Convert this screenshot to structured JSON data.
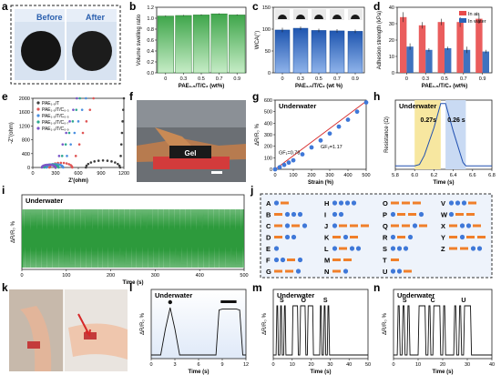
{
  "panel_letters": [
    "a",
    "b",
    "c",
    "d",
    "e",
    "f",
    "g",
    "h",
    "i",
    "j",
    "k",
    "l",
    "m",
    "n"
  ],
  "photo_a": {
    "before_label": "Before",
    "after_label": "After"
  },
  "photo_f": {
    "gel_label": "Gel"
  },
  "colors": {
    "green_bar": "#4caf50",
    "blue_bar": "#2a63b8",
    "red_bar": "#e84b4b",
    "blue_light": "#5d8fdc",
    "orange_dash": "#f07f2a",
    "dot_blue": "#3f78d8",
    "green_signal": "#2d9a3c",
    "panel_bg": "#eef3fb",
    "yellow_band": "#f7e7a0",
    "blue_band": "#c9daf3"
  },
  "chart_data": [
    {
      "panel": "b",
      "type": "bar",
      "categories": [
        "0",
        "0.3",
        "0.5",
        "0.7",
        "0.9"
      ],
      "values": [
        1.04,
        1.05,
        1.06,
        1.08,
        1.06
      ],
      "errors": [
        0.01,
        0.01,
        0.01,
        0.01,
        0.01
      ],
      "xlabel": "PAE₁.₅/T/C₂ (wt%)",
      "ylabel": "Volume swelling ratio",
      "ylim": [
        0.0,
        1.2
      ],
      "yticks": [
        "0.0",
        "0.2",
        "0.4",
        "0.6",
        "0.8",
        "1.0",
        "1.2"
      ]
    },
    {
      "panel": "c",
      "type": "bar",
      "categories": [
        "0",
        "0.3",
        "0.5",
        "0.7",
        "0.9"
      ],
      "values": [
        98,
        102,
        97,
        96,
        95
      ],
      "errors": [
        5,
        4,
        4,
        4,
        4
      ],
      "xlabel": "PAE₁.₅/T/C₂ (wt %)",
      "ylabel": "WCA(°)",
      "ylim": [
        0,
        150
      ],
      "yticks": [
        "0",
        "50",
        "100",
        "150"
      ]
    },
    {
      "panel": "d",
      "type": "bar",
      "categories": [
        "0",
        "0.3",
        "0.5",
        "0.7",
        "0.9"
      ],
      "series": [
        {
          "name": "In air",
          "values": [
            34,
            29,
            31,
            31,
            33
          ],
          "errors": [
            3,
            2,
            2,
            3,
            3
          ]
        },
        {
          "name": "In water",
          "values": [
            16,
            14,
            15,
            14,
            13
          ],
          "errors": [
            2,
            1,
            1,
            2,
            1
          ]
        }
      ],
      "xlabel": "PAE₁.₅/T/C₂ (wt%)",
      "ylabel": "Adhesion strength (kPa)",
      "ylim": [
        0,
        40
      ],
      "yticks": [
        "0",
        "10",
        "20",
        "30",
        "40"
      ],
      "legend": "top-right"
    },
    {
      "panel": "e",
      "type": "scatter",
      "xlabel": "Z'(ohm)",
      "ylabel": "-Z''(ohm)",
      "xlim": [
        0,
        1200
      ],
      "ylim": [
        0,
        2000
      ],
      "xticks": [
        "0",
        "300",
        "600",
        "900",
        "1200"
      ],
      "yticks": [
        "0",
        "400",
        "800",
        "1200",
        "1600",
        "2000"
      ],
      "legend": "top-left",
      "series": [
        {
          "name": "PAE₁.₅/T",
          "color": "#3d3d3d",
          "arc": [
            700,
            1150
          ],
          "tail_x": [
            1150,
            1200
          ]
        },
        {
          "name": "PAE₁.₅/T/C₀.₃",
          "color": "#e05555",
          "arc": [
            220,
            520
          ],
          "tail_x": [
            520,
            800
          ]
        },
        {
          "name": "PAE₁.₅/T/C₀.₅",
          "color": "#4a8fe0",
          "arc": [
            180,
            400
          ],
          "tail_x": [
            400,
            700
          ]
        },
        {
          "name": "PAE₁.₅/T/C₀.₇",
          "color": "#2da890",
          "arc": [
            150,
            340
          ],
          "tail_x": [
            340,
            620
          ]
        },
        {
          "name": "PAE₁.₅/T/C₀.₉",
          "color": "#7a55c8",
          "arc": [
            120,
            300
          ],
          "tail_x": [
            300,
            580
          ]
        }
      ]
    },
    {
      "panel": "g",
      "type": "scatter",
      "title": "Underwater",
      "xlabel": "Strain (%)",
      "ylabel": "ΔR/R₀ %",
      "xlim": [
        0,
        500
      ],
      "ylim": [
        0,
        600
      ],
      "xticks": [
        "0",
        "100",
        "200",
        "300",
        "400",
        "500"
      ],
      "yticks": [
        "0",
        "100",
        "200",
        "300",
        "400",
        "500",
        "600"
      ],
      "annotations": [
        "GF₁=0.78",
        "GF₂=1.17"
      ],
      "x": [
        0,
        25,
        50,
        75,
        100,
        150,
        200,
        250,
        300,
        350,
        400,
        450,
        500
      ],
      "y": [
        0,
        18,
        38,
        58,
        78,
        130,
        190,
        250,
        310,
        370,
        430,
        500,
        580
      ]
    },
    {
      "panel": "h",
      "type": "line",
      "title": "Underwater",
      "xlabel": "Time (s)",
      "ylabel": "Resistance (Ω)",
      "xlim": [
        5.8,
        6.8
      ],
      "xticks": [
        "5.8",
        "6.0",
        "6.2",
        "6.4",
        "6.6",
        "6.8"
      ],
      "annotations": [
        "0.27s",
        "0.26 s"
      ],
      "x": [
        5.8,
        6.0,
        6.05,
        6.1,
        6.2,
        6.27,
        6.32,
        6.4,
        6.5,
        6.53,
        6.6,
        6.8
      ],
      "y": [
        0.05,
        0.05,
        0.07,
        0.2,
        0.6,
        0.95,
        0.95,
        0.55,
        0.1,
        0.05,
        0.05,
        0.05
      ]
    },
    {
      "panel": "i",
      "type": "line",
      "title": "Underwater",
      "xlabel": "Time (s)",
      "ylabel": "ΔR/R₀ %",
      "xlim": [
        0,
        500
      ],
      "xticks": [
        "0",
        "100",
        "200",
        "300",
        "400",
        "500"
      ],
      "y_low": 0,
      "y_high": 1
    },
    {
      "panel": "l",
      "type": "line",
      "title": "Underwater",
      "xlabel": "Time (s)",
      "ylabel": "ΔR/R₀ %",
      "xlim": [
        0,
        12
      ],
      "xticks": [
        "0",
        "3",
        "6",
        "9",
        "12"
      ],
      "x": [
        0,
        1.2,
        1.8,
        2.4,
        3.0,
        3.6,
        4.2,
        8.2,
        8.6,
        9.0,
        10.8,
        11.2,
        11.6,
        12
      ],
      "y": [
        0,
        0,
        0.55,
        1.0,
        0.55,
        0,
        0,
        0,
        0.95,
        0.97,
        0.97,
        0.95,
        0,
        0
      ]
    },
    {
      "panel": "m",
      "type": "line",
      "title": "Underwater",
      "xlabel": "Time (s)",
      "ylabel": "ΔR/R₀ %",
      "xlim": [
        0,
        50
      ],
      "xticks": [
        "0",
        "10",
        "20",
        "30",
        "40",
        "50"
      ],
      "annotations": [
        "S",
        "O",
        "S"
      ]
    },
    {
      "panel": "n",
      "type": "line",
      "title": "Underwater",
      "xlabel": "Time (s)",
      "ylabel": "ΔR/R₀ %",
      "xlim": [
        0,
        40
      ],
      "xticks": [
        "0",
        "10",
        "20",
        "30",
        "40"
      ],
      "annotations": [
        "S",
        "C",
        "U"
      ]
    }
  ],
  "morse_j": [
    {
      "letter": "A",
      "code": ".-"
    },
    {
      "letter": "B",
      "code": "-..."
    },
    {
      "letter": "C",
      "code": "-.-."
    },
    {
      "letter": "D",
      "code": "-.."
    },
    {
      "letter": "E",
      "code": "."
    },
    {
      "letter": "F",
      "code": "..-."
    },
    {
      "letter": "G",
      "code": "--."
    },
    {
      "letter": "H",
      "code": "...."
    },
    {
      "letter": "I",
      "code": ".."
    },
    {
      "letter": "J",
      "code": ".---"
    },
    {
      "letter": "K",
      "code": "-.-"
    },
    {
      "letter": "L",
      "code": ".-.."
    },
    {
      "letter": "M",
      "code": "--"
    },
    {
      "letter": "N",
      "code": "-."
    },
    {
      "letter": "O",
      "code": "---"
    },
    {
      "letter": "P",
      "code": ".--."
    },
    {
      "letter": "Q",
      "code": "--.-"
    },
    {
      "letter": "R",
      "code": ".-."
    },
    {
      "letter": "S",
      "code": "..."
    },
    {
      "letter": "T",
      "code": "-"
    },
    {
      "letter": "U",
      "code": "..-"
    },
    {
      "letter": "V",
      "code": "...-"
    },
    {
      "letter": "W",
      "code": ".--"
    },
    {
      "letter": "X",
      "code": "-..-"
    },
    {
      "letter": "Y",
      "code": "-.--"
    },
    {
      "letter": "Z",
      "code": "--.."
    }
  ]
}
